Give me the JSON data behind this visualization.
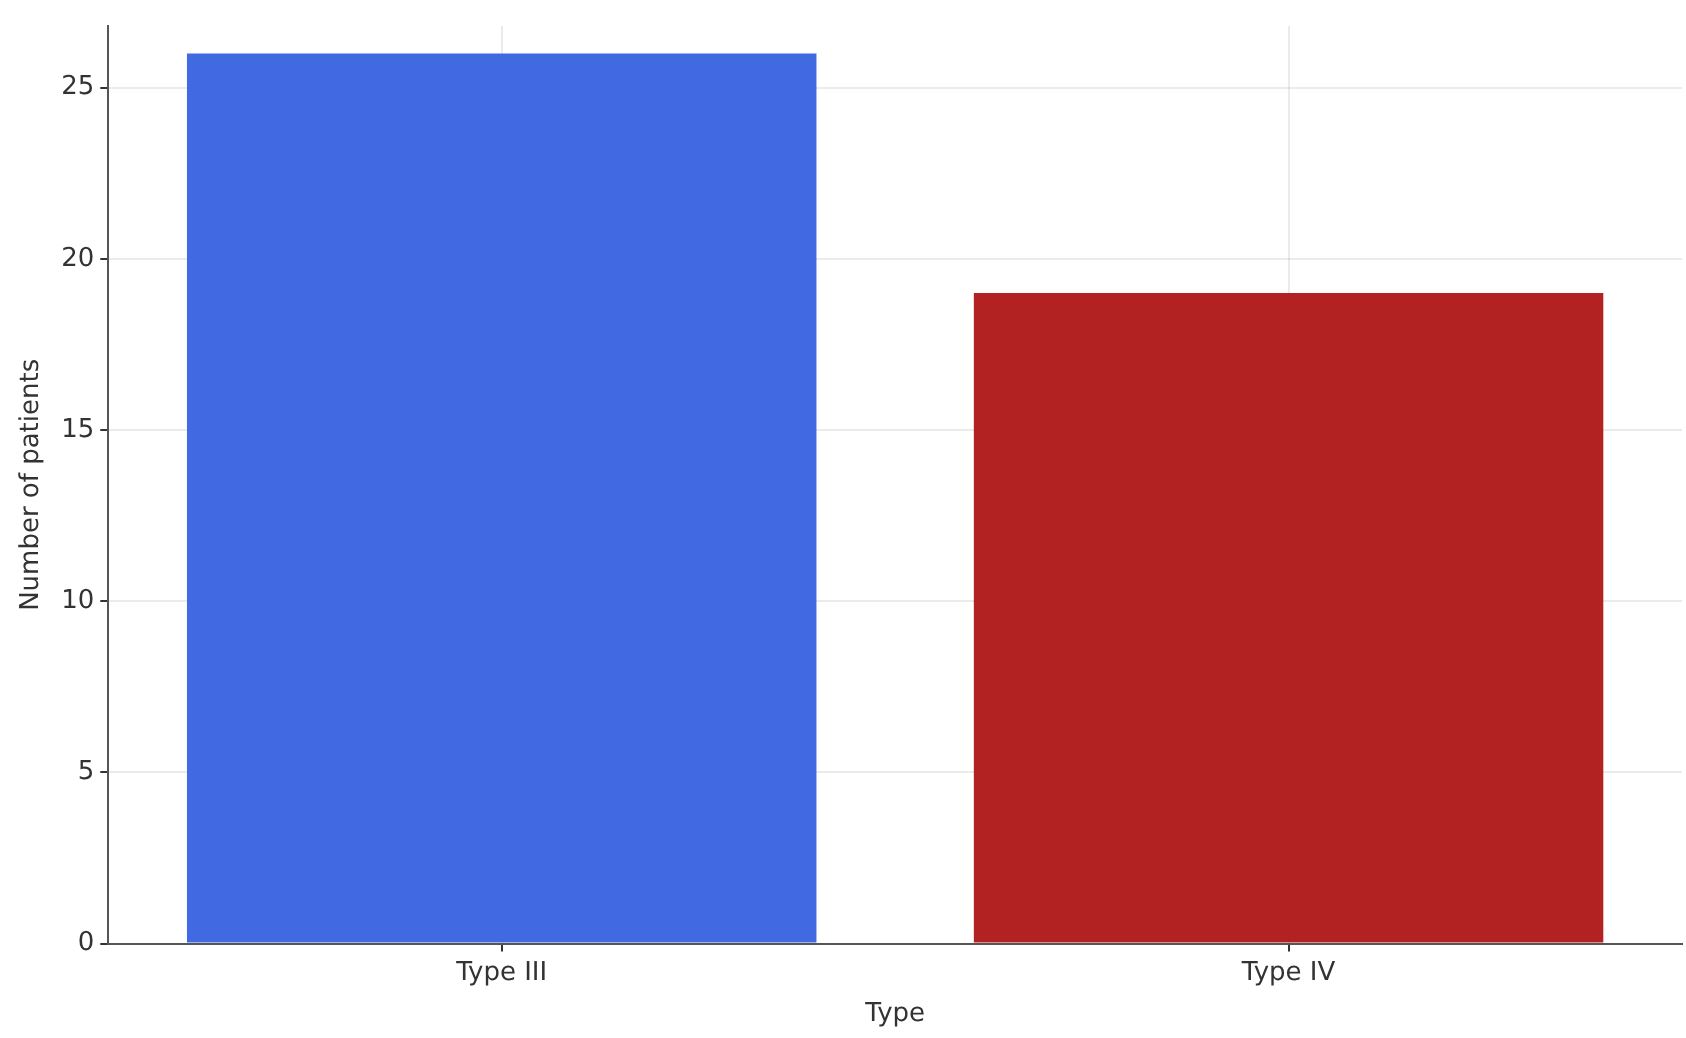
{
  "chart_data": {
    "type": "bar",
    "xlabel": "Type",
    "ylabel": "Number of patients",
    "categories": [
      "Type III",
      "Type IV"
    ],
    "values": [
      26,
      19
    ],
    "colors": [
      "#4169e1",
      "#b22222"
    ],
    "ylim": [
      0,
      26.8
    ],
    "yticks": [
      0,
      5,
      10,
      15,
      20,
      25
    ],
    "grid": true,
    "legend": false
  }
}
